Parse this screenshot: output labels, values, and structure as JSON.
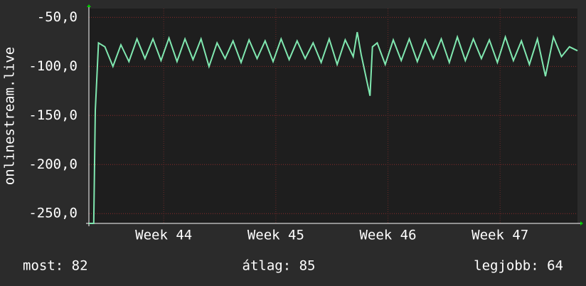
{
  "chart_data": {
    "type": "line",
    "y_label": "onlinestream.live",
    "x": [
      0,
      0.3,
      0.4,
      0.6,
      1.0,
      1.5,
      2.0,
      2.5,
      3.0,
      3.5,
      4.0,
      4.5,
      5.0,
      5.5,
      6.0,
      6.5,
      7.0,
      7.5,
      8.0,
      8.5,
      9.0,
      9.5,
      10.0,
      10.5,
      11.0,
      11.5,
      12.0,
      12.5,
      13.0,
      13.5,
      14.0,
      14.5,
      15.0,
      15.5,
      16.0,
      16.5,
      16.75,
      17.0,
      17.55,
      17.7,
      18.0,
      18.5,
      19.0,
      19.5,
      20.0,
      20.5,
      21.0,
      21.5,
      22.0,
      22.5,
      23.0,
      23.5,
      24.0,
      24.5,
      25.0,
      25.5,
      26.0,
      26.5,
      27.0,
      27.5,
      28.0,
      28.5,
      29.0,
      29.5,
      30.0,
      30.5
    ],
    "series": [
      {
        "name": "onlinestream.live",
        "color": "#80e8b0",
        "values": [
          -260,
          -260,
          -145,
          -76,
          -80,
          -100,
          -78,
          -95,
          -72,
          -92,
          -72,
          -94,
          -71,
          -95,
          -72,
          -93,
          -72,
          -100,
          -76,
          -92,
          -74,
          -96,
          -73,
          -92,
          -74,
          -95,
          -72,
          -93,
          -74,
          -92,
          -76,
          -96,
          -72,
          -98,
          -73,
          -90,
          -65,
          -88,
          -130,
          -80,
          -76,
          -98,
          -73,
          -94,
          -72,
          -95,
          -73,
          -92,
          -72,
          -96,
          -70,
          -94,
          -72,
          -92,
          -73,
          -96,
          -70,
          -94,
          -74,
          -98,
          -72,
          -110,
          -70,
          -90,
          -80,
          -84
        ]
      }
    ],
    "xlim": [
      0,
      30.5
    ],
    "xticks": [
      {
        "value": 4.67,
        "label": "Week 44"
      },
      {
        "value": 11.67,
        "label": "Week 45"
      },
      {
        "value": 18.67,
        "label": "Week 46"
      },
      {
        "value": 25.67,
        "label": "Week 47"
      }
    ],
    "ylim": [
      -260,
      -41
    ],
    "yticks": [
      {
        "value": -50,
        "label": "-50,0"
      },
      {
        "value": -100,
        "label": "-100,0"
      },
      {
        "value": -150,
        "label": "-150,0"
      },
      {
        "value": -200,
        "label": "-200,0"
      },
      {
        "value": -250,
        "label": "-250,0"
      }
    ],
    "grid": true,
    "footer": [
      "most: 82",
      "átlag: 85",
      "legjobb: 64"
    ]
  }
}
